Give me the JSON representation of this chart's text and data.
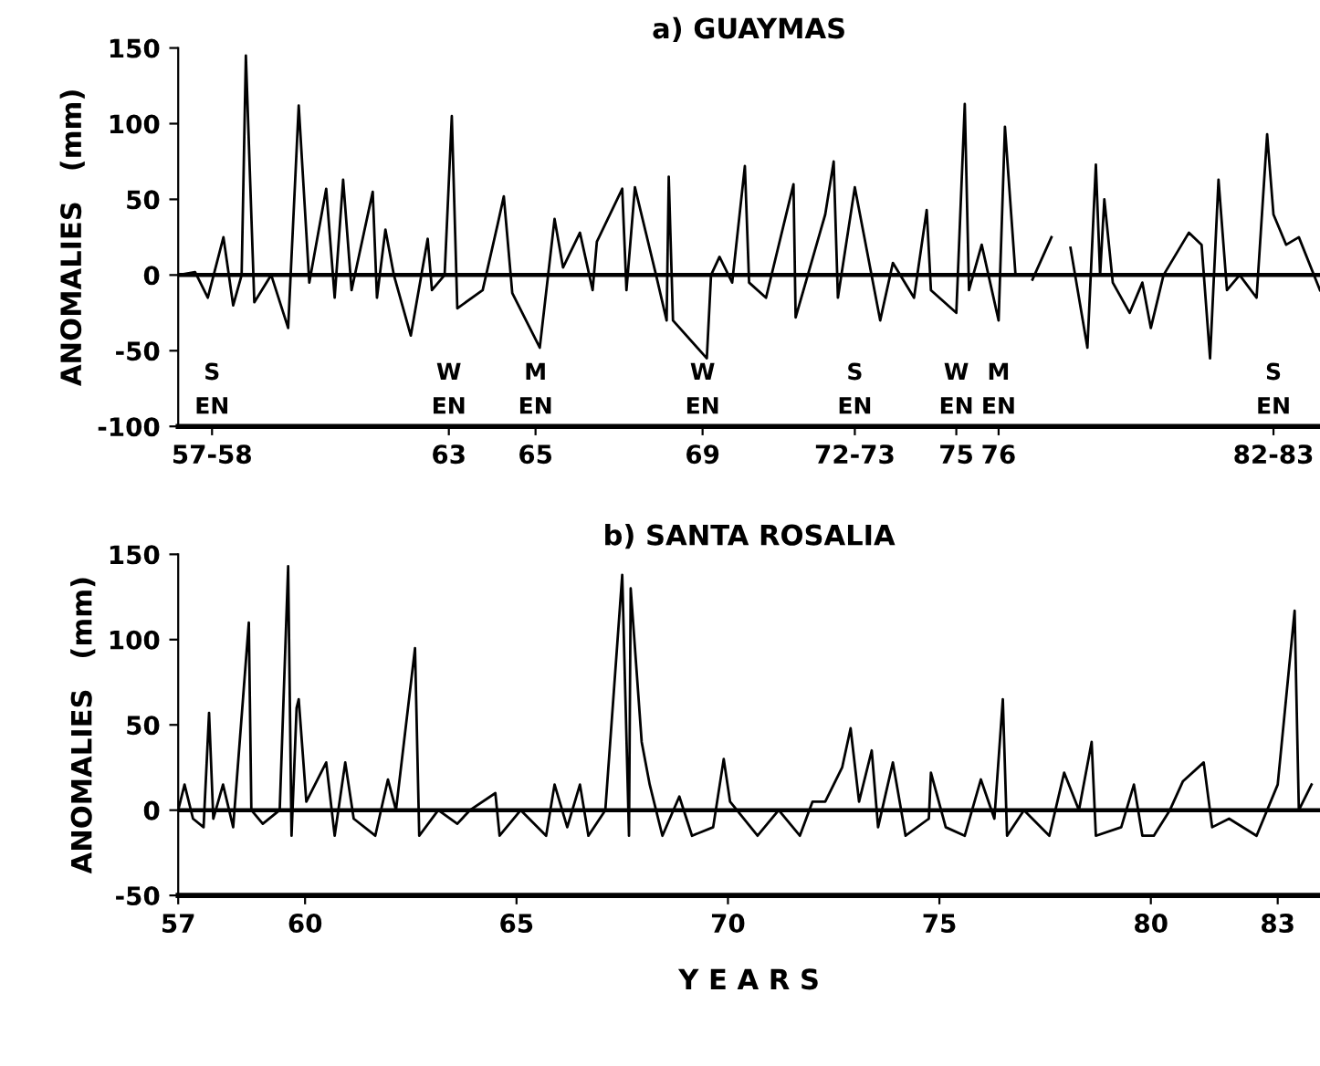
{
  "chart_data": [
    {
      "type": "line",
      "title": "a) GUAYMAS",
      "ylabel": "ANOMALIES   (mm)",
      "xlim": [
        57,
        84
      ],
      "ylim": [
        -100,
        150
      ],
      "yticks": [
        -100,
        -50,
        0,
        50,
        100,
        150
      ],
      "xticks": [
        {
          "value": 57.8,
          "label": "57-58"
        },
        {
          "value": 63.4,
          "label": "63"
        },
        {
          "value": 65.45,
          "label": "65"
        },
        {
          "value": 69.4,
          "label": "69"
        },
        {
          "value": 73.0,
          "label": "72-73"
        },
        {
          "value": 75.4,
          "label": "75"
        },
        {
          "value": 76.4,
          "label": "76"
        },
        {
          "value": 82.9,
          "label": "82-83"
        }
      ],
      "grid": false,
      "marker": "none",
      "line_style": "solid",
      "ref_lines": [
        {
          "axis": "y",
          "value": 0,
          "color": "#000000"
        }
      ],
      "annotations": [
        "S",
        "EN",
        "W",
        "EN",
        "M",
        "EN",
        "W",
        "EN",
        "S",
        "EN",
        "W",
        "EN",
        "M",
        "EN",
        "S",
        "EN"
      ],
      "series": [
        {
          "color": "#000000",
          "x": [
            57.0,
            57.4,
            57.7,
            58.07,
            58.3,
            58.5,
            58.6,
            58.8,
            59.2,
            59.6,
            59.85,
            60.1,
            60.5,
            60.7,
            60.9,
            61.1,
            61.6,
            61.7,
            61.9,
            62.1,
            62.5,
            62.9,
            63.0,
            63.3,
            63.47,
            63.6,
            64.2,
            64.55,
            64.7,
            64.9,
            65.55,
            65.9,
            66.1,
            66.5,
            66.8,
            66.9,
            67.5,
            67.6,
            67.8,
            68.3,
            68.55,
            68.6,
            68.7,
            69.5,
            69.6,
            69.8,
            70.1,
            70.4,
            70.5,
            70.9,
            71.55,
            71.6,
            72.3,
            72.5,
            72.6,
            73.0,
            73.6,
            73.9,
            74.4,
            74.7,
            74.8,
            75.4,
            75.6,
            75.7,
            76.0,
            76.4,
            76.55,
            76.8,
            77.0,
            77.2,
            77.65,
            77.9,
            78.1,
            78.5,
            78.7,
            78.8,
            78.9,
            79.1,
            79.5,
            79.8,
            80.0,
            80.3,
            80.9,
            81.2,
            81.4,
            81.6,
            81.8,
            82.1,
            82.5,
            82.75,
            82.9,
            83.2,
            83.5,
            84.0
          ],
          "values": [
            0,
            2,
            -15,
            25,
            -20,
            0,
            145,
            -18,
            0,
            -35,
            112,
            -5,
            57,
            -15,
            63,
            -10,
            55,
            -15,
            30,
            0,
            -40,
            24,
            -10,
            0,
            105,
            -22,
            -10,
            33,
            52,
            -12,
            -48,
            37,
            5,
            28,
            -10,
            22,
            57,
            -10,
            58,
            0,
            -30,
            65,
            -30,
            -55,
            0,
            12,
            -5,
            72,
            -5,
            -15,
            60,
            -28,
            40,
            75,
            -15,
            58,
            -30,
            8,
            -15,
            43,
            -10,
            -25,
            113,
            -10,
            20,
            -30,
            98,
            0,
            null,
            -3,
            25,
            null,
            18,
            -48,
            73,
            0,
            50,
            -5,
            -25,
            -5,
            -35,
            0,
            28,
            20,
            -55,
            63,
            -10,
            0,
            -15,
            93,
            40,
            20,
            25,
            -10
          ]
        }
      ]
    },
    {
      "type": "line",
      "title": "b) SANTA ROSALIA",
      "ylabel": "ANOMALIES   (mm)",
      "xlabel": "Y E A R S",
      "xlim": [
        57,
        84
      ],
      "ylim": [
        -50,
        150
      ],
      "yticks": [
        -50,
        0,
        50,
        100,
        150
      ],
      "xticks": [
        57,
        60,
        65,
        70,
        75,
        80,
        83
      ],
      "grid": false,
      "marker": "none",
      "line_style": "solid",
      "ref_lines": [
        {
          "axis": "y",
          "value": 0,
          "color": "#000000"
        }
      ],
      "series": [
        {
          "color": "#000000",
          "x": [
            57.0,
            57.15,
            57.35,
            57.6,
            57.73,
            57.83,
            58.06,
            58.3,
            58.67,
            58.73,
            59.0,
            59.4,
            59.6,
            59.68,
            59.8,
            59.85,
            60.03,
            60.5,
            60.7,
            60.95,
            61.15,
            61.66,
            61.96,
            62.15,
            62.6,
            62.7,
            63.15,
            63.6,
            63.9,
            64.5,
            64.6,
            65.1,
            65.7,
            65.9,
            66.2,
            66.5,
            66.7,
            67.1,
            67.5,
            67.66,
            67.7,
            67.96,
            68.15,
            68.45,
            68.85,
            69.15,
            69.65,
            69.9,
            70.05,
            70.7,
            71.2,
            71.7,
            72.0,
            72.3,
            72.7,
            72.9,
            73.1,
            73.4,
            73.55,
            73.9,
            74.2,
            74.75,
            74.8,
            75.15,
            75.6,
            75.98,
            76.3,
            76.5,
            76.6,
            77.0,
            77.6,
            77.95,
            78.3,
            78.6,
            78.7,
            79.3,
            79.6,
            79.8,
            80.07,
            80.45,
            80.76,
            81.25,
            81.45,
            81.85,
            82.5,
            83.0,
            83.4,
            83.5,
            83.8
          ],
          "values": [
            0,
            15,
            -5,
            -10,
            57,
            -5,
            15,
            -10,
            110,
            0,
            -8,
            0,
            143,
            -15,
            60,
            65,
            5,
            28,
            -15,
            28,
            -5,
            -15,
            18,
            0,
            95,
            -15,
            0,
            -8,
            0,
            10,
            -15,
            0,
            -15,
            15,
            -10,
            15,
            -15,
            0,
            138,
            -15,
            130,
            40,
            15,
            -15,
            8,
            -15,
            -10,
            30,
            5,
            -15,
            0,
            -15,
            5,
            5,
            25,
            48,
            5,
            35,
            -10,
            28,
            -15,
            -5,
            22,
            -10,
            -15,
            18,
            -5,
            65,
            -15,
            0,
            -15,
            22,
            0,
            40,
            -15,
            -10,
            15,
            -15,
            -15,
            0,
            17,
            28,
            -10,
            -5,
            -15,
            15,
            117,
            0,
            15
          ]
        }
      ]
    }
  ]
}
